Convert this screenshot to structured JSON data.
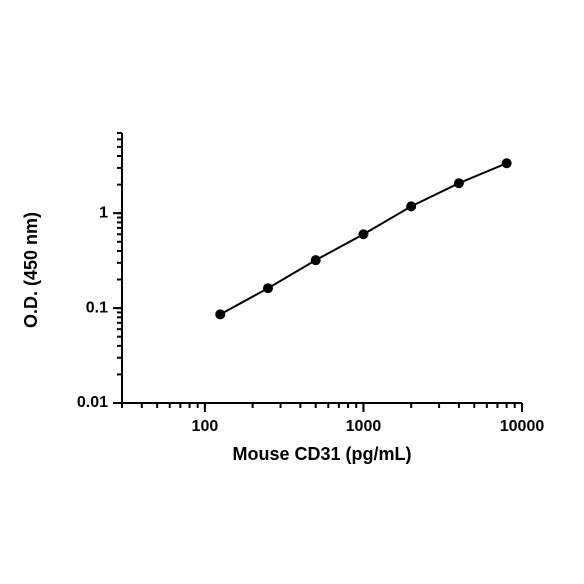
{
  "chart_data": {
    "type": "line",
    "x_label": "Mouse CD31 (pg/mL)",
    "y_label": "O.D. (450 nm)",
    "x": [
      125,
      250,
      500,
      1000,
      2000,
      4000,
      8000
    ],
    "series": [
      {
        "color": "#000000",
        "values": [
          0.086,
          0.162,
          0.32,
          0.6,
          1.18,
          2.07,
          3.36
        ]
      }
    ],
    "xlim": [
      30,
      10000
    ],
    "xticks": [
      100,
      1000,
      10000
    ],
    "ylim": [
      0.01,
      7
    ],
    "yticks": [
      0.01,
      0.1,
      1
    ],
    "x_log": true,
    "y_log": true,
    "grid": false
  }
}
